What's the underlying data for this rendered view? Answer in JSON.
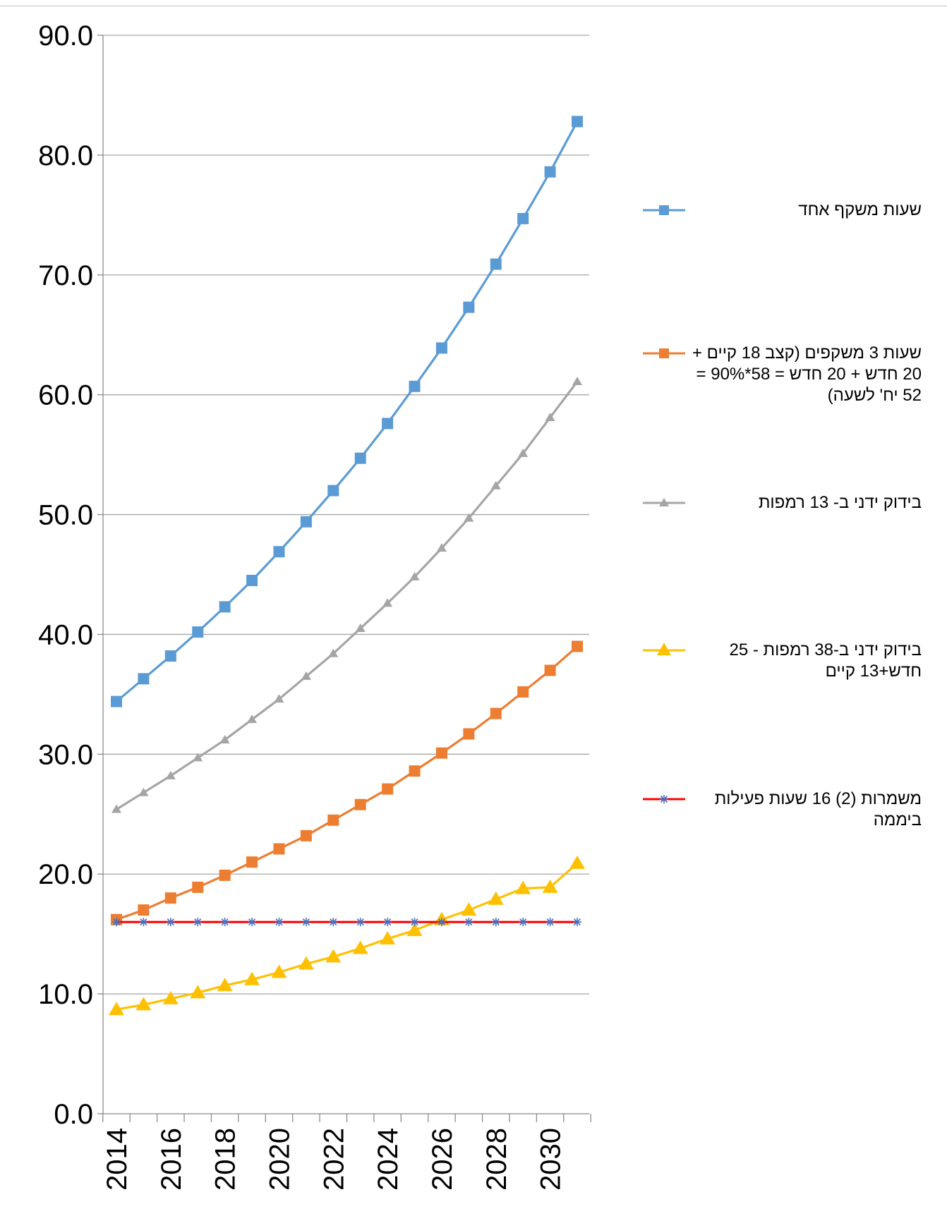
{
  "chart_data": {
    "type": "line",
    "title": "",
    "xlabel": "",
    "ylabel": "",
    "x": [
      2014,
      2015,
      2016,
      2017,
      2018,
      2019,
      2020,
      2021,
      2022,
      2023,
      2024,
      2025,
      2026,
      2027,
      2028,
      2029,
      2030,
      2031
    ],
    "x_tick_labels": [
      "2014",
      "2016",
      "2018",
      "2020",
      "2022",
      "2024",
      "2026",
      "2028",
      "2030"
    ],
    "y_tick_labels": [
      "0.0",
      "10.0",
      "20.0",
      "30.0",
      "40.0",
      "50.0",
      "60.0",
      "70.0",
      "80.0",
      "90.0"
    ],
    "ylim": [
      0,
      90
    ],
    "grid": "horizontal",
    "legend_position": "right",
    "series": [
      {
        "name": "שעות משקף אחד",
        "color": "#5B9BD5",
        "marker": "square",
        "values": [
          34.4,
          36.3,
          38.2,
          40.2,
          42.3,
          44.5,
          46.9,
          49.4,
          52.0,
          54.7,
          57.6,
          60.7,
          63.9,
          67.3,
          70.9,
          74.7,
          78.6,
          82.8
        ]
      },
      {
        "name": "שעות 3 משקפים (קצב 18 קיים + 20 חדש + 20 חדש = 58*90% = 52 יח' לשעה)",
        "color": "#ED7D31",
        "marker": "square",
        "values": [
          16.2,
          17.0,
          18.0,
          18.9,
          19.9,
          21.0,
          22.1,
          23.2,
          24.5,
          25.8,
          27.1,
          28.6,
          30.1,
          31.7,
          33.4,
          35.2,
          37.0,
          39.0
        ]
      },
      {
        "name": "בידוק ידני ב- 13 רמפות",
        "color": "#A5A5A5",
        "marker": "triangle-small",
        "values": [
          25.4,
          26.8,
          28.2,
          29.7,
          31.2,
          32.9,
          34.6,
          36.5,
          38.4,
          40.5,
          42.6,
          44.8,
          47.2,
          49.7,
          52.4,
          55.1,
          58.1,
          61.1
        ]
      },
      {
        "name": "בידוק ידני ב-38 רמפות - 25 חדש+13 קיים",
        "color": "#FFC000",
        "marker": "triangle",
        "values": [
          8.7,
          9.1,
          9.6,
          10.1,
          10.7,
          11.2,
          11.8,
          12.5,
          13.1,
          13.8,
          14.6,
          15.3,
          16.2,
          17.0,
          17.9,
          18.8,
          18.9,
          20.9
        ]
      },
      {
        "name": "משמרות (2) 16 שעות פעילות ביממה",
        "color": "#FF0000",
        "marker": "star",
        "marker_color": "#4472C4",
        "values": [
          16,
          16,
          16,
          16,
          16,
          16,
          16,
          16,
          16,
          16,
          16,
          16,
          16,
          16,
          16,
          16,
          16,
          16
        ]
      }
    ]
  },
  "legend": {
    "item1": "שעות משקף אחד",
    "item2": "שעות 3 משקפים (קצב 18 קיים + 20 חדש + 20 חדש = 58*90% = 52 יח' לשעה)",
    "item3": "בידוק ידני ב- 13 רמפות",
    "item4": "בידוק ידני ב-38 רמפות - 25 חדש+13 קיים",
    "item5": "משמרות (2) 16 שעות פעילות ביממה"
  }
}
